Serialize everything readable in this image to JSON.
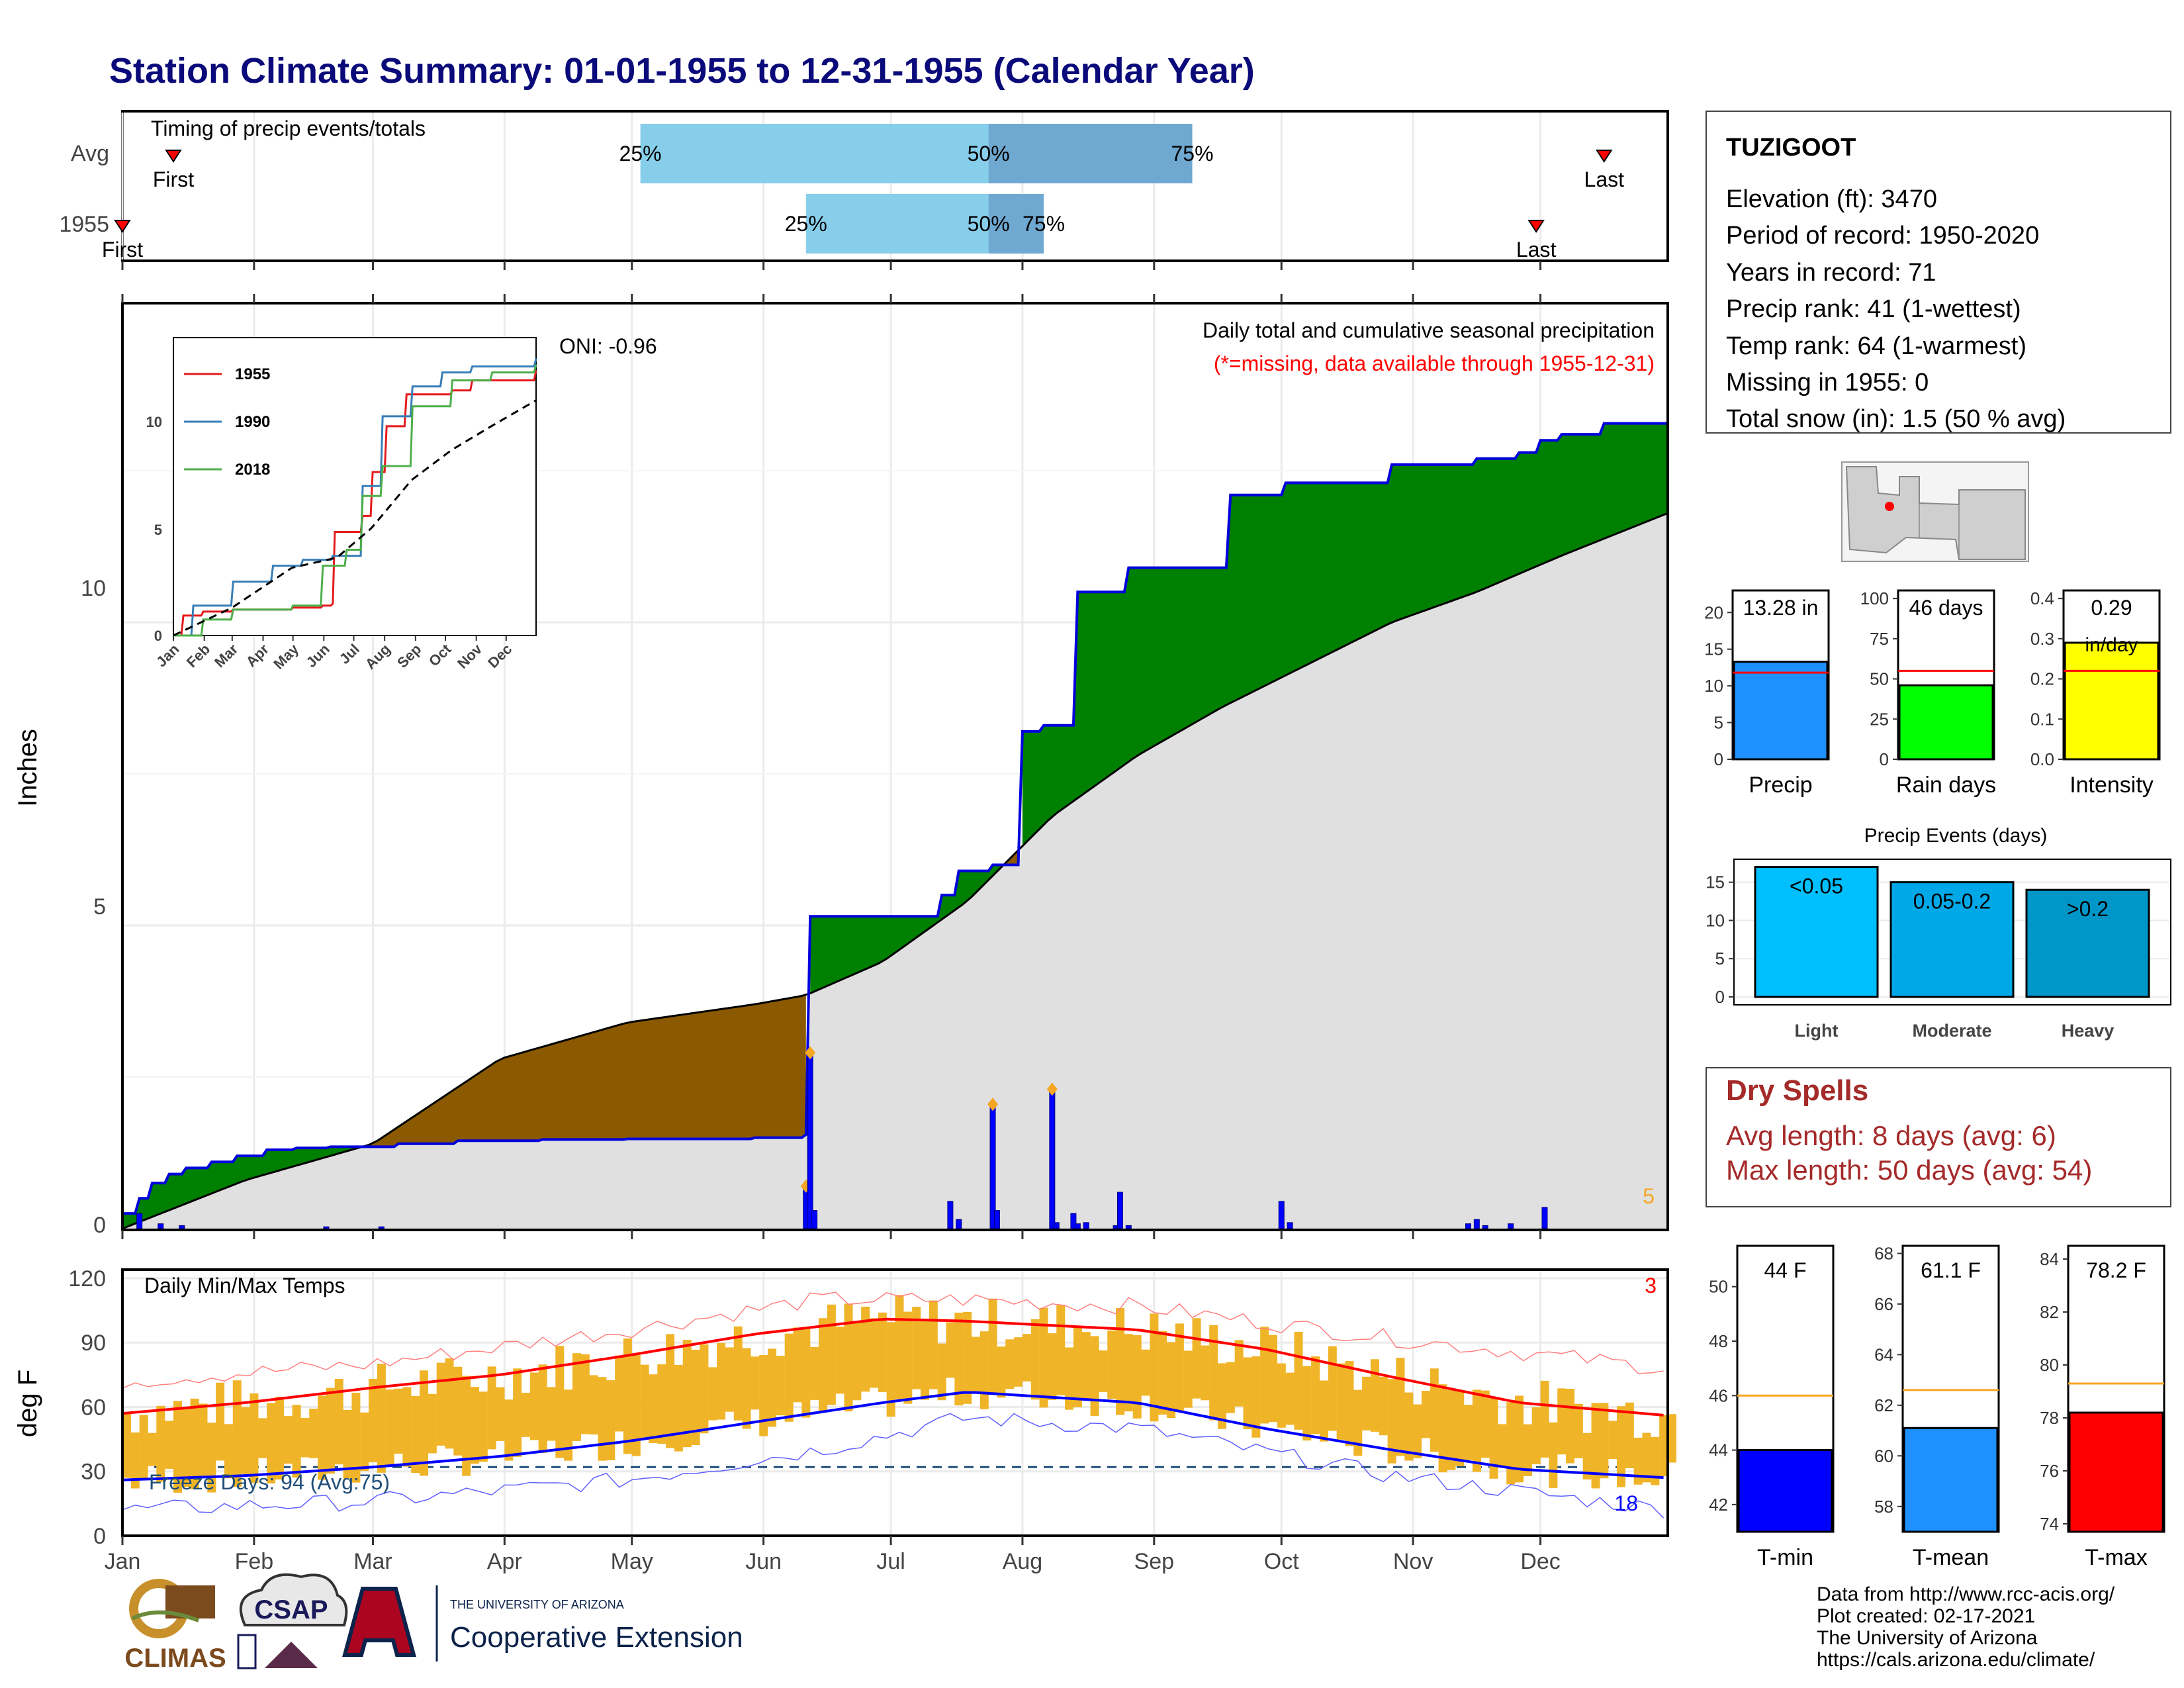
{
  "title": "Station Climate Summary: 01-01-1955 to 12-31-1955 (Calendar Year)",
  "colors": {
    "title": "#0a0a7a",
    "green": "#008000",
    "brown": "#8b5a00",
    "gray_fill": "#e0e0e0",
    "blue_line": "#0000dd",
    "orange": "#f5a623",
    "red": "#ff0000",
    "bar_light": "#87ceeb",
    "bar_dark": "#6fa8d0",
    "temp_bar": "#f0b428",
    "dry_spells": "#a52a2a"
  },
  "timing_panel": {
    "title": "Timing of precip events/totals",
    "rows": [
      {
        "label": "Avg",
        "first_label": "First",
        "last_label": "Last",
        "p25": "25%",
        "p50": "50%",
        "p75": "75%",
        "first_day": 13,
        "last_day": 350,
        "d25": 123,
        "d50": 205,
        "d75": 253
      },
      {
        "label": "1955",
        "first_label": "First",
        "last_label": "Last",
        "p25": "25%",
        "p50": "50%",
        "p75": "75%",
        "first_day": 1,
        "last_day": 334,
        "d25": 162,
        "d50": 205,
        "d75": 218
      }
    ]
  },
  "precip_panel": {
    "annotation": "Daily total and cumulative seasonal precipitation",
    "missing_note": "(*=missing, data available through 1955-12-31)",
    "y_axis_label": "Inches",
    "y_ticks": [
      "0",
      "5",
      "10"
    ],
    "corner_count": "5",
    "oni": "ONI: -0.96"
  },
  "inset_chart": {
    "legend": [
      "1955",
      "1990",
      "2018"
    ],
    "y_ticks": [
      "0",
      "5",
      "10"
    ],
    "x_ticks": [
      "Jan",
      "Feb",
      "Mar",
      "Apr",
      "May",
      "Jun",
      "Jul",
      "Aug",
      "Sep",
      "Oct",
      "Nov",
      "Dec"
    ]
  },
  "temp_panel": {
    "title": "Daily Min/Max Temps",
    "freeze_days": "Freeze Days: 94 (Avg:75)",
    "y_axis_label": "deg F",
    "y_ticks": [
      "0",
      "30",
      "60",
      "90",
      "120"
    ],
    "count_top": "3",
    "count_bottom": "18"
  },
  "months": [
    "Jan",
    "Feb",
    "Mar",
    "Apr",
    "May",
    "Jun",
    "Jul",
    "Aug",
    "Sep",
    "Oct",
    "Nov",
    "Dec"
  ],
  "station": {
    "name": "TUZIGOOT",
    "lines": [
      "Elevation (ft): 3470",
      "Period of record: 1950-2020",
      "Years in record: 71",
      "Precip rank: 41 (1-wettest)",
      "Temp rank: 64 (1-warmest)",
      "Missing in 1955: 0",
      "Total snow (in): 1.5 (50 % avg)"
    ]
  },
  "summary_bars": [
    {
      "label": "Precip",
      "value_text": "13.28 in",
      "value": 13.28,
      "avg": 11.8,
      "ymax": 23,
      "ticks": [
        "0",
        "5",
        "10",
        "15",
        "20"
      ],
      "color": "#1e90ff"
    },
    {
      "label": "Rain days",
      "value_text": "46 days",
      "value": 46,
      "avg": 55,
      "ymax": 105,
      "ticks": [
        "0",
        "25",
        "50",
        "75",
        "100"
      ],
      "color": "#00ff00"
    },
    {
      "label": "Intensity",
      "value_text": "0.29",
      "unit_text": "in/day",
      "value": 0.29,
      "avg": 0.22,
      "ymax": 0.42,
      "ticks": [
        "0.0",
        "0.1",
        "0.2",
        "0.3",
        "0.4"
      ],
      "color": "#ffff00"
    }
  ],
  "precip_events": {
    "title": "Precip Events (days)",
    "ticks": [
      "0",
      "5",
      "10",
      "15"
    ],
    "bars": [
      {
        "label": "Light",
        "bin": "<0.05",
        "value": 17,
        "color": "#00bfff"
      },
      {
        "label": "Moderate",
        "bin": "0.05-0.2",
        "value": 15,
        "color": "#00a8e8"
      },
      {
        "label": "Heavy",
        "bin": ">0.2",
        "value": 14,
        "color": "#0096c8"
      }
    ]
  },
  "dry_spells": {
    "title": "Dry Spells",
    "avg_length": "Avg length: 8 days (avg: 6)",
    "max_length": "Max length: 50 days (avg: 54)"
  },
  "temp_bars": [
    {
      "label": "T-min",
      "value_text": "44 F",
      "value": 44,
      "avg": 46,
      "ymin": 41,
      "ymax": 51.5,
      "ticks": [
        "42",
        "44",
        "46",
        "48",
        "50"
      ],
      "color": "#0000ff"
    },
    {
      "label": "T-mean",
      "value_text": "61.1 F",
      "value": 61.1,
      "avg": 62.6,
      "ymin": 57,
      "ymax": 68.3,
      "ticks": [
        "58",
        "60",
        "62",
        "64",
        "66",
        "68"
      ],
      "color": "#1e90ff"
    },
    {
      "label": "T-max",
      "value_text": "78.2 F",
      "value": 78.2,
      "avg": 79.3,
      "ymin": 73.7,
      "ymax": 84.5,
      "ticks": [
        "74",
        "76",
        "78",
        "80",
        "82",
        "84"
      ],
      "color": "#ff0000"
    }
  ],
  "footer": {
    "logos": [
      "CLIMAS",
      "CSAP",
      "THE UNIVERSITY OF ARIZONA",
      "Cooperative Extension"
    ],
    "credits": [
      "Data from http://www.rcc-acis.org/",
      "Plot created: 02-17-2021",
      "The University of Arizona",
      "https://cals.arizona.edu/climate/"
    ]
  },
  "chart_data": [
    {
      "type": "area",
      "title": "Daily total and cumulative seasonal precipitation",
      "ylabel": "Inches",
      "ylim": [
        0,
        14.5
      ],
      "xlim": [
        1,
        365
      ],
      "series": [
        {
          "name": "1955",
          "x": [
            1,
            5,
            8,
            12,
            16,
            22,
            28,
            35,
            42,
            50,
            60,
            66,
            80,
            100,
            120,
            150,
            162,
            163,
            190,
            194,
            198,
            206,
            213,
            218,
            226,
            238,
            262,
            270,
            275,
            280,
            290,
            300,
            320,
            330,
            335,
            340,
            350,
            365
          ],
          "values": [
            0.25,
            0.5,
            0.75,
            0.9,
            1.0,
            1.1,
            1.2,
            1.3,
            1.33,
            1.35,
            1.35,
            1.4,
            1.45,
            1.47,
            1.48,
            1.5,
            1.55,
            5.15,
            5.15,
            5.5,
            5.9,
            6.0,
            8.2,
            8.3,
            10.5,
            10.9,
            12.1,
            12.1,
            12.3,
            12.3,
            12.3,
            12.6,
            12.7,
            12.8,
            13.0,
            13.1,
            13.28,
            13.28
          ]
        },
        {
          "name": "Avg",
          "x": [
            1,
            30,
            60,
            90,
            120,
            150,
            162,
            180,
            200,
            220,
            240,
            260,
            280,
            300,
            320,
            340,
            365
          ],
          "values": [
            0,
            0.8,
            1.4,
            2.8,
            3.4,
            3.7,
            3.85,
            4.4,
            5.4,
            6.8,
            7.8,
            8.6,
            9.3,
            10.0,
            10.5,
            11.1,
            11.8
          ]
        }
      ],
      "daily_precip": {
        "x": [
          5,
          10,
          15,
          49,
          62,
          162,
          163,
          164,
          196,
          198,
          206,
          207,
          220,
          221,
          225,
          226,
          228,
          235,
          236,
          238,
          274,
          276,
          318,
          320,
          322,
          328,
          336
        ],
        "values": [
          0.25,
          0.08,
          0.05,
          0.03,
          0.03,
          0.7,
          2.9,
          0.3,
          0.45,
          0.15,
          2.05,
          0.3,
          2.3,
          0.1,
          0.25,
          0.08,
          0.1,
          0.05,
          0.6,
          0.05,
          0.45,
          0.1,
          0.08,
          0.15,
          0.05,
          0.08,
          0.35
        ]
      }
    },
    {
      "type": "line",
      "title": "Daily Min/Max Temps",
      "ylabel": "deg F",
      "ylim": [
        0,
        120
      ],
      "series": [
        {
          "name": "Avg max",
          "x": [
            1,
            30,
            60,
            90,
            120,
            150,
            180,
            200,
            240,
            270,
            300,
            330,
            365
          ],
          "values": [
            57,
            62,
            69,
            75,
            84,
            94,
            101,
            100,
            96,
            87,
            74,
            62,
            56
          ]
        },
        {
          "name": "Avg min",
          "x": [
            1,
            30,
            60,
            90,
            120,
            150,
            180,
            200,
            240,
            270,
            300,
            330,
            365
          ],
          "values": [
            26,
            28,
            32,
            37,
            44,
            53,
            62,
            67,
            62,
            50,
            40,
            31,
            27
          ]
        },
        {
          "name": "Record max",
          "x": [
            1,
            60,
            120,
            165,
            200,
            240,
            300,
            365
          ],
          "values": [
            72,
            80,
            96,
            110,
            110,
            107,
            92,
            78
          ]
        },
        {
          "name": "Record min",
          "x": [
            1,
            60,
            120,
            165,
            200,
            240,
            300,
            365
          ],
          "values": [
            12,
            16,
            26,
            40,
            55,
            50,
            28,
            12
          ]
        }
      ]
    },
    {
      "type": "line",
      "title": "Cumulative precipitation inset",
      "ylim": [
        0,
        14
      ],
      "series": [
        {
          "name": "1955",
          "x": [
            1,
            10,
            30,
            60,
            120,
            150,
            160,
            163,
            190,
            200,
            215,
            235,
            280,
            300,
            365
          ],
          "values": [
            0,
            1,
            1.2,
            1.3,
            1.4,
            1.5,
            1.6,
            5.2,
            6,
            8.2,
            10.5,
            12.1,
            12.3,
            12.8,
            13.3
          ]
        },
        {
          "name": "1990",
          "x": [
            1,
            20,
            60,
            100,
            130,
            160,
            190,
            210,
            240,
            270,
            300,
            365
          ],
          "values": [
            0,
            1.5,
            2.7,
            3.5,
            3.8,
            4.0,
            7.5,
            11.0,
            12.5,
            13.2,
            13.5,
            13.9
          ]
        },
        {
          "name": "2018",
          "x": [
            1,
            30,
            60,
            120,
            150,
            175,
            190,
            210,
            240,
            280,
            320,
            365
          ],
          "values": [
            0,
            0.8,
            1.3,
            1.5,
            3.5,
            4.3,
            7.0,
            8.5,
            11.5,
            12.8,
            13.2,
            13.6
          ]
        },
        {
          "name": "Avg",
          "x": [
            1,
            60,
            120,
            165,
            200,
            240,
            280,
            320,
            365
          ],
          "values": [
            0,
            1.4,
            3.4,
            3.9,
            5.4,
            7.8,
            9.3,
            10.5,
            11.8
          ]
        }
      ]
    }
  ]
}
